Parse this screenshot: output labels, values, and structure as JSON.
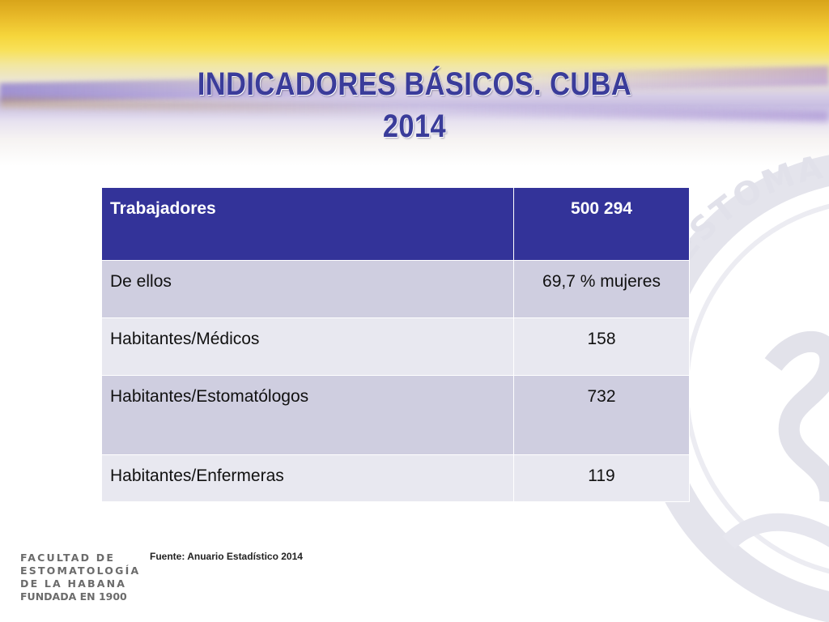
{
  "slide": {
    "title_line1": "INDICADORES BÁSICOS. CUBA",
    "title_line2": "2014"
  },
  "table": {
    "header": {
      "label": "Trabajadores",
      "value": "500 294"
    },
    "rows": [
      {
        "label": "De ellos",
        "value": "69,7 % mujeres"
      },
      {
        "label": "Habitantes/Médicos",
        "value": "158"
      },
      {
        "label": "Habitantes/Estomatólogos",
        "value": "732"
      },
      {
        "label": "Habitantes/Enfermeras",
        "value": "119"
      }
    ]
  },
  "source": "Fuente: Anuario Estadístico 2014",
  "logo": {
    "line1": "FACULTAD DE",
    "line2": "ESTOMATOLOGÍA",
    "line3": "DE LA HABANA",
    "line4": "FUNDADA EN 1900"
  },
  "seal": {
    "text": "DE ESTOMA"
  },
  "colors": {
    "header_bg": "#333399",
    "row_odd_bg": "#cfcee0",
    "row_even_bg": "#e8e8f0",
    "title_color": "#3a3c9a"
  }
}
